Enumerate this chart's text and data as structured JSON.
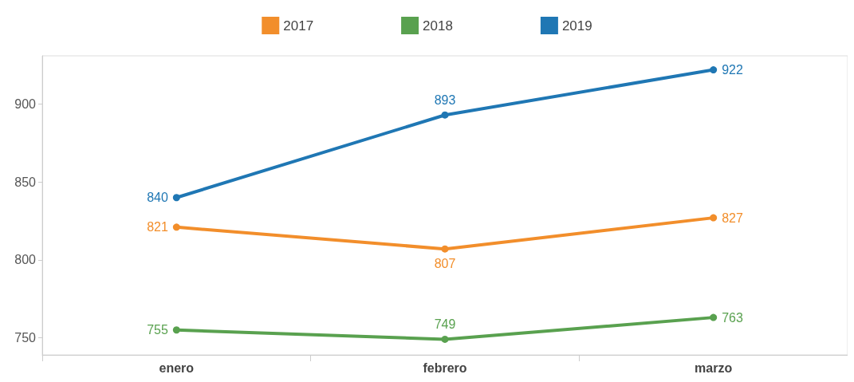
{
  "chart_data": {
    "type": "line",
    "categories": [
      "enero",
      "febrero",
      "marzo"
    ],
    "series": [
      {
        "name": "2017",
        "color": "#f28e2b",
        "values": [
          821,
          807,
          827
        ]
      },
      {
        "name": "2018",
        "color": "#59a14f",
        "values": [
          755,
          749,
          763
        ]
      },
      {
        "name": "2019",
        "color": "#1f77b4",
        "values": [
          840,
          893,
          922
        ]
      }
    ],
    "ylim": [
      739,
      931
    ],
    "yticks": [
      750,
      800,
      850,
      900
    ],
    "data_labels": true,
    "legend": "top",
    "grid": false,
    "marker": "circle",
    "line_style": "solid"
  }
}
